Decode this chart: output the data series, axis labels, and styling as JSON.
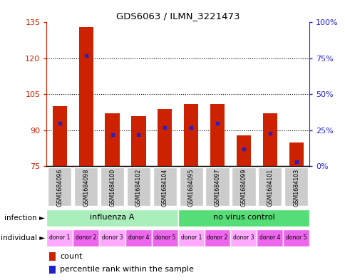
{
  "title": "GDS6063 / ILMN_3221473",
  "samples": [
    "GSM1684096",
    "GSM1684098",
    "GSM1684100",
    "GSM1684102",
    "GSM1684104",
    "GSM1684095",
    "GSM1684097",
    "GSM1684099",
    "GSM1684101",
    "GSM1684103"
  ],
  "counts": [
    100,
    133,
    97,
    96,
    99,
    101,
    101,
    88,
    97,
    85
  ],
  "percentile_ranks_pct": [
    30,
    77,
    22,
    22,
    27,
    27,
    30,
    12,
    23,
    3
  ],
  "ylim_left": [
    75,
    135
  ],
  "ylim_right": [
    0,
    100
  ],
  "yticks_left": [
    75,
    90,
    105,
    120,
    135
  ],
  "ytick_labels_left": [
    "75",
    "90",
    "105",
    "120",
    "135"
  ],
  "yticks_right_pct": [
    0,
    25,
    50,
    75,
    100
  ],
  "ytick_labels_right": [
    "0%",
    "25%",
    "50%",
    "75%",
    "100%"
  ],
  "infection_groups": [
    {
      "label": "influenza A",
      "n": 5,
      "color": "#AAEEBB"
    },
    {
      "label": "no virus control",
      "n": 5,
      "color": "#55DD77"
    }
  ],
  "individual_labels": [
    "donor 1",
    "donor 2",
    "donor 3",
    "donor 4",
    "donor 5",
    "donor 1",
    "donor 2",
    "donor 3",
    "donor 4",
    "donor 5"
  ],
  "individual_colors": [
    "#FFAAFF",
    "#EE66EE",
    "#FFAAFF",
    "#EE66EE",
    "#EE66EE",
    "#FFAAFF",
    "#EE66EE",
    "#FFAAFF",
    "#EE66EE",
    "#EE66EE"
  ],
  "bar_color": "#CC2200",
  "dot_color": "#2222CC",
  "bar_bottom": 75,
  "bar_width": 0.55,
  "legend_count_label": "count",
  "legend_pct_label": "percentile rank within the sample",
  "infection_label": "infection",
  "individual_label": "individual",
  "grid_ticks": [
    90,
    105,
    120
  ],
  "ylabel_left_color": "#CC2200",
  "ylabel_right_color": "#2222CC",
  "sample_box_color": "#CCCCCC",
  "arrow": "►"
}
